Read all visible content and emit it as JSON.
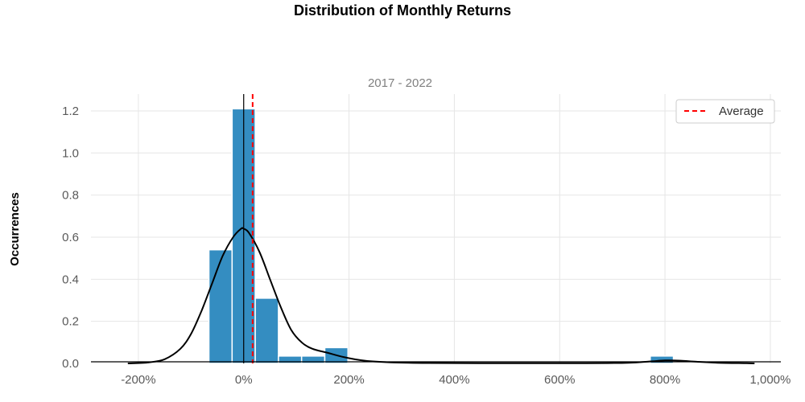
{
  "chart_data": {
    "type": "bar",
    "title": "Distribution of Monthly Returns",
    "subtitle": "2017 - 2022",
    "xlabel": "",
    "ylabel": "Occurrences",
    "xlim": [
      -2.9,
      10.2
    ],
    "ylim": [
      0,
      1.28
    ],
    "x_ticks": [
      {
        "value": -2,
        "label": "-200%"
      },
      {
        "value": 0,
        "label": "0%"
      },
      {
        "value": 2,
        "label": "200%"
      },
      {
        "value": 4,
        "label": "400%"
      },
      {
        "value": 6,
        "label": "600%"
      },
      {
        "value": 8,
        "label": "800%"
      },
      {
        "value": 10,
        "label": "1,000%"
      }
    ],
    "y_ticks": [
      {
        "value": 0,
        "label": "0.0"
      },
      {
        "value": 0.2,
        "label": "0.2"
      },
      {
        "value": 0.4,
        "label": "0.4"
      },
      {
        "value": 0.6,
        "label": "0.6"
      },
      {
        "value": 0.8,
        "label": "0.8"
      },
      {
        "value": 1.0,
        "label": "1.0"
      },
      {
        "value": 1.2,
        "label": "1.2"
      }
    ],
    "histogram": {
      "color": "#348dc1",
      "bins": [
        {
          "x0": -0.66,
          "x1": -0.22,
          "value": 0.54
        },
        {
          "x0": -0.22,
          "x1": 0.22,
          "value": 1.21
        },
        {
          "x0": 0.22,
          "x1": 0.66,
          "value": 0.31
        },
        {
          "x0": 0.66,
          "x1": 1.1,
          "value": 0.035
        },
        {
          "x0": 1.1,
          "x1": 1.54,
          "value": 0.035
        },
        {
          "x0": 1.54,
          "x1": 1.98,
          "value": 0.075
        },
        {
          "x0": 7.72,
          "x1": 8.16,
          "value": 0.035
        }
      ]
    },
    "kde": {
      "color": "#000000",
      "points": [
        [
          -2.2,
          0.0
        ],
        [
          -1.8,
          0.005
        ],
        [
          -1.5,
          0.02
        ],
        [
          -1.2,
          0.07
        ],
        [
          -1.0,
          0.14
        ],
        [
          -0.8,
          0.25
        ],
        [
          -0.6,
          0.38
        ],
        [
          -0.4,
          0.51
        ],
        [
          -0.2,
          0.6
        ],
        [
          -0.05,
          0.64
        ],
        [
          0.0,
          0.64
        ],
        [
          0.1,
          0.62
        ],
        [
          0.3,
          0.53
        ],
        [
          0.5,
          0.4
        ],
        [
          0.7,
          0.27
        ],
        [
          0.9,
          0.16
        ],
        [
          1.1,
          0.1
        ],
        [
          1.3,
          0.07
        ],
        [
          1.6,
          0.05
        ],
        [
          1.9,
          0.03
        ],
        [
          2.3,
          0.013
        ],
        [
          2.8,
          0.005
        ],
        [
          3.5,
          0.002
        ],
        [
          5.0,
          0.001
        ],
        [
          6.5,
          0.001
        ],
        [
          7.3,
          0.003
        ],
        [
          7.7,
          0.009
        ],
        [
          8.0,
          0.014
        ],
        [
          8.3,
          0.013
        ],
        [
          8.6,
          0.008
        ],
        [
          9.0,
          0.003
        ],
        [
          9.5,
          0.001
        ],
        [
          9.7,
          0.0
        ]
      ]
    },
    "zero_line": {
      "x": 0,
      "color": "#000000"
    },
    "average_line": {
      "x": 0.17,
      "color": "#ff0000",
      "style": "dashed"
    },
    "legend": {
      "position": "top-right",
      "entries": [
        {
          "label": "Average",
          "color": "#ff0000",
          "style": "dashed"
        }
      ]
    },
    "grid": true
  }
}
